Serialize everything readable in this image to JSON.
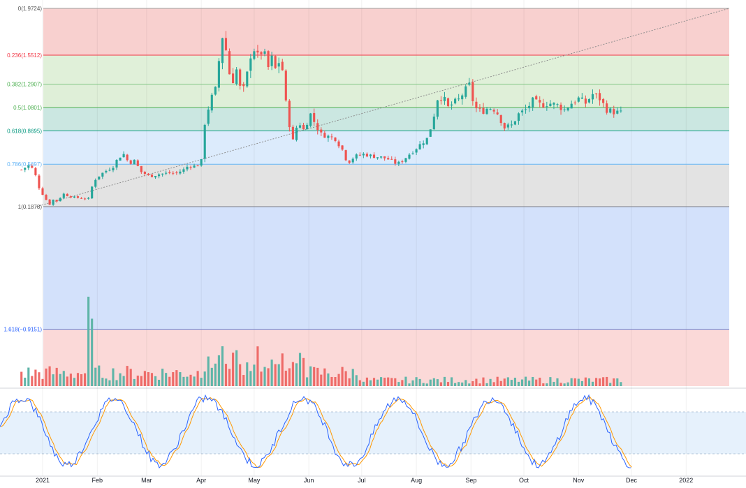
{
  "chart_data": {
    "type": "candlestick",
    "fib_levels": [
      {
        "label": "0(1.9724)",
        "ratio": 0,
        "value": 1.9724,
        "band_color": "#f8d0cf",
        "line_color": "#9e9e9e",
        "text_color": "#555555"
      },
      {
        "label": "0.236(1.5512)",
        "ratio": 0.236,
        "value": 1.5512,
        "band_color": "#e0f0d9",
        "line_color": "#f23645",
        "text_color": "#f23645"
      },
      {
        "label": "0.382(1.2907)",
        "ratio": 0.382,
        "value": 1.2907,
        "band_color": "#dfefd8",
        "line_color": "#81c784",
        "text_color": "#4caf50"
      },
      {
        "label": "0.5(1.0801)",
        "ratio": 0.5,
        "value": 1.0801,
        "band_color": "#cbe7e1",
        "line_color": "#4caf50",
        "text_color": "#4caf50"
      },
      {
        "label": "0.618(0.8695)",
        "ratio": 0.618,
        "value": 0.8695,
        "band_color": "#dcebfc",
        "line_color": "#089981",
        "text_color": "#089981"
      },
      {
        "label": "0.786(0.5697)",
        "ratio": 0.786,
        "value": 0.5697,
        "band_color": "#e3e3e3",
        "line_color": "#64b5f6",
        "text_color": "#64b5f6"
      },
      {
        "label": "1(0.1878)",
        "ratio": 1,
        "value": 0.1878,
        "band_color": "#d3e1fb",
        "line_color": "#787b86",
        "text_color": "#555555"
      },
      {
        "label": "1.618(−0.9151)",
        "ratio": 1.618,
        "value": -0.9151,
        "band_color": "#fbd9d8",
        "line_color": "#5b7fd6",
        "text_color": "#2962ff"
      }
    ],
    "x_ticks": [
      "2021",
      "Feb",
      "Mar",
      "Apr",
      "May",
      "Jun",
      "Jul",
      "Aug",
      "Sep",
      "Oct",
      "Nov",
      "Dec",
      "2022"
    ],
    "x_tick_dates": [
      "2021-01-01",
      "2021-02-01",
      "2021-03-01",
      "2021-04-01",
      "2021-05-01",
      "2021-06-01",
      "2021-07-01",
      "2021-08-01",
      "2021-09-01",
      "2021-10-01",
      "2021-11-01",
      "2021-12-01",
      "2022-01-01"
    ],
    "price_path": [
      [
        "2020-12-20",
        0.52
      ],
      [
        "2020-12-24",
        0.56
      ],
      [
        "2020-12-27",
        0.52
      ],
      [
        "2020-12-30",
        0.36
      ],
      [
        "2021-01-02",
        0.27
      ],
      [
        "2021-01-05",
        0.21
      ],
      [
        "2021-01-07",
        0.25
      ],
      [
        "2021-01-10",
        0.23
      ],
      [
        "2021-01-12",
        0.31
      ],
      [
        "2021-01-16",
        0.28
      ],
      [
        "2021-01-20",
        0.27
      ],
      [
        "2021-01-24",
        0.26
      ],
      [
        "2021-01-27",
        0.26
      ],
      [
        "2021-01-30",
        0.42
      ],
      [
        "2021-02-03",
        0.48
      ],
      [
        "2021-02-07",
        0.52
      ],
      [
        "2021-02-10",
        0.55
      ],
      [
        "2021-02-13",
        0.63
      ],
      [
        "2021-02-16",
        0.66
      ],
      [
        "2021-02-19",
        0.58
      ],
      [
        "2021-02-22",
        0.6
      ],
      [
        "2021-02-26",
        0.5
      ],
      [
        "2021-03-03",
        0.46
      ],
      [
        "2021-03-08",
        0.48
      ],
      [
        "2021-03-13",
        0.49
      ],
      [
        "2021-03-18",
        0.49
      ],
      [
        "2021-03-22",
        0.52
      ],
      [
        "2021-03-25",
        0.56
      ],
      [
        "2021-03-29",
        0.55
      ],
      [
        "2021-04-01",
        0.6
      ],
      [
        "2021-04-03",
        0.94
      ],
      [
        "2021-04-06",
        1.14
      ],
      [
        "2021-04-09",
        1.24
      ],
      [
        "2021-04-11",
        1.5
      ],
      [
        "2021-04-13",
        1.72
      ],
      [
        "2021-04-15",
        1.6
      ],
      [
        "2021-04-18",
        1.28
      ],
      [
        "2021-04-21",
        1.42
      ],
      [
        "2021-04-24",
        1.18
      ],
      [
        "2021-04-27",
        1.38
      ],
      [
        "2021-04-30",
        1.64
      ],
      [
        "2021-05-03",
        1.54
      ],
      [
        "2021-05-06",
        1.6
      ],
      [
        "2021-05-09",
        1.44
      ],
      [
        "2021-05-11",
        1.52
      ],
      [
        "2021-05-14",
        1.38
      ],
      [
        "2021-05-16",
        1.6
      ],
      [
        "2021-05-18",
        1.24
      ],
      [
        "2021-05-20",
        1.0
      ],
      [
        "2021-05-23",
        0.78
      ],
      [
        "2021-05-26",
        0.96
      ],
      [
        "2021-05-29",
        0.88
      ],
      [
        "2021-06-02",
        1.02
      ],
      [
        "2021-06-05",
        0.92
      ],
      [
        "2021-06-08",
        0.84
      ],
      [
        "2021-06-12",
        0.82
      ],
      [
        "2021-06-16",
        0.8
      ],
      [
        "2021-06-20",
        0.7
      ],
      [
        "2021-06-23",
        0.58
      ],
      [
        "2021-06-27",
        0.64
      ],
      [
        "2021-07-02",
        0.66
      ],
      [
        "2021-07-08",
        0.64
      ],
      [
        "2021-07-13",
        0.63
      ],
      [
        "2021-07-17",
        0.61
      ],
      [
        "2021-07-21",
        0.57
      ],
      [
        "2021-07-24",
        0.6
      ],
      [
        "2021-07-28",
        0.66
      ],
      [
        "2021-07-31",
        0.7
      ],
      [
        "2021-08-04",
        0.76
      ],
      [
        "2021-08-07",
        0.8
      ],
      [
        "2021-08-10",
        0.94
      ],
      [
        "2021-08-13",
        1.16
      ],
      [
        "2021-08-16",
        1.18
      ],
      [
        "2021-08-19",
        1.08
      ],
      [
        "2021-08-22",
        1.12
      ],
      [
        "2021-08-25",
        1.15
      ],
      [
        "2021-08-28",
        1.22
      ],
      [
        "2021-08-31",
        1.28
      ],
      [
        "2021-09-03",
        1.08
      ],
      [
        "2021-09-07",
        1.04
      ],
      [
        "2021-09-11",
        1.08
      ],
      [
        "2021-09-15",
        1.06
      ],
      [
        "2021-09-20",
        0.9
      ],
      [
        "2021-09-24",
        0.92
      ],
      [
        "2021-09-28",
        1.02
      ],
      [
        "2021-10-02",
        1.06
      ],
      [
        "2021-10-06",
        1.14
      ],
      [
        "2021-10-11",
        1.1
      ],
      [
        "2021-10-15",
        1.12
      ],
      [
        "2021-10-20",
        1.1
      ],
      [
        "2021-10-24",
        1.06
      ],
      [
        "2021-10-28",
        1.12
      ],
      [
        "2021-11-01",
        1.16
      ],
      [
        "2021-11-05",
        1.12
      ],
      [
        "2021-11-09",
        1.2
      ],
      [
        "2021-11-13",
        1.16
      ],
      [
        "2021-11-17",
        1.06
      ],
      [
        "2021-11-21",
        1.04
      ],
      [
        "2021-11-26",
        1.03
      ]
    ]
  }
}
